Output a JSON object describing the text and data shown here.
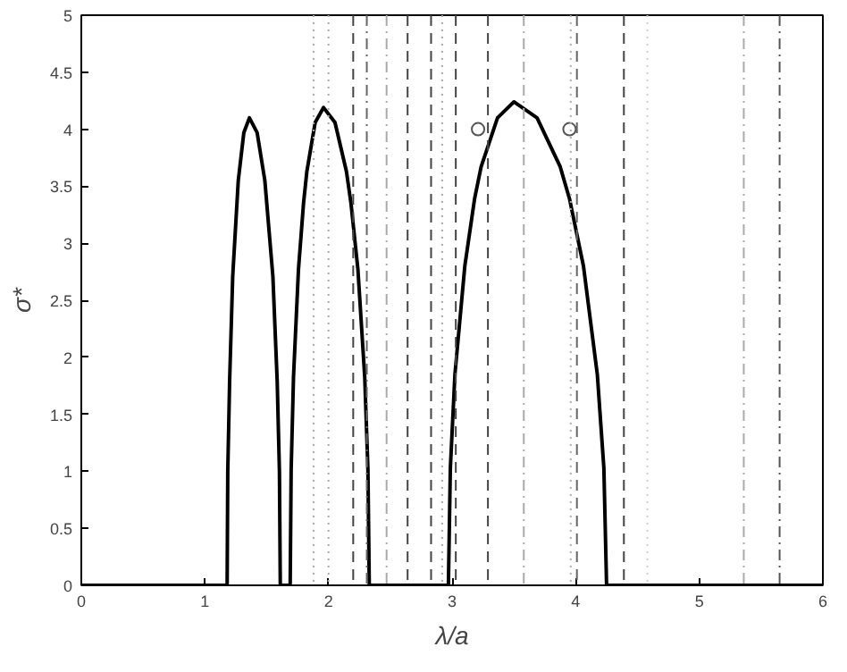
{
  "chart_data": {
    "type": "line",
    "xlabel": "λ/a",
    "ylabel": "σ*",
    "xlim": [
      0,
      6
    ],
    "ylim": [
      0,
      5
    ],
    "xticks": [
      0,
      1,
      2,
      3,
      4,
      5,
      6
    ],
    "yticks": [
      0,
      0.5,
      1,
      1.5,
      2,
      2.5,
      3,
      3.5,
      4,
      4.5,
      5
    ],
    "grid": false,
    "series": [
      {
        "color": "#000000",
        "x": [
          0,
          1.18,
          1.185,
          1.2,
          1.225,
          1.27,
          1.315,
          1.36,
          1.4225,
          1.485,
          1.55,
          1.585,
          1.603,
          1.61,
          1.69,
          1.698,
          1.717,
          1.757,
          1.798,
          1.825,
          1.8925,
          1.96,
          2.0525,
          2.145,
          2.182,
          2.238,
          2.293,
          2.319,
          2.33,
          2.97,
          2.986,
          3.023,
          3.103,
          3.182,
          3.235,
          3.3675,
          3.5,
          3.6875,
          3.875,
          3.95,
          4.063,
          4.175,
          4.228,
          4.25,
          6
        ],
        "values": [
          0,
          0,
          1.0,
          1.79,
          2.71,
          3.55,
          3.97,
          4.1,
          3.97,
          3.55,
          2.71,
          1.79,
          1.0,
          0,
          0,
          1.02,
          1.83,
          2.77,
          3.35,
          3.63,
          4.06,
          4.19,
          4.06,
          3.63,
          3.35,
          2.77,
          1.83,
          1.02,
          0,
          0,
          1.03,
          1.85,
          2.8,
          3.39,
          3.67,
          4.1,
          4.24,
          4.1,
          3.67,
          3.39,
          2.8,
          1.85,
          1.03,
          0,
          0
        ]
      },
      {
        "type": "scatter",
        "marker": "circle",
        "color": "#555555",
        "x": [
          3.21,
          3.95
        ],
        "values": [
          4.0,
          4.0
        ]
      }
    ],
    "ref_lines": [
      {
        "axis": "x",
        "value": 1.88,
        "color": "#aaaaaa",
        "line_style": "dotted"
      },
      {
        "axis": "x",
        "value": 2.0,
        "color": "#aaaaaa",
        "line_style": "dotted"
      },
      {
        "axis": "x",
        "value": 2.2,
        "color": "#444444",
        "line_style": "dashed"
      },
      {
        "axis": "x",
        "value": 2.31,
        "color": "#666666",
        "line_style": "dashdot"
      },
      {
        "axis": "x",
        "value": 2.47,
        "color": "#aaaaaa",
        "line_style": "dashdot"
      },
      {
        "axis": "x",
        "value": 2.64,
        "color": "#444444",
        "line_style": "dashed"
      },
      {
        "axis": "x",
        "value": 2.83,
        "color": "#444444",
        "line_style": "dashed"
      },
      {
        "axis": "x",
        "value": 2.92,
        "color": "#aaaaaa",
        "line_style": "dotted"
      },
      {
        "axis": "x",
        "value": 3.03,
        "color": "#444444",
        "line_style": "dashed"
      },
      {
        "axis": "x",
        "value": 3.29,
        "color": "#444444",
        "line_style": "dashed"
      },
      {
        "axis": "x",
        "value": 3.58,
        "color": "#aaaaaa",
        "line_style": "dashdot"
      },
      {
        "axis": "x",
        "value": 3.96,
        "color": "#aaaaaa",
        "line_style": "dotted"
      },
      {
        "axis": "x",
        "value": 4.01,
        "color": "#666666",
        "line_style": "dashed"
      },
      {
        "axis": "x",
        "value": 4.39,
        "color": "#444444",
        "line_style": "dashed"
      },
      {
        "axis": "x",
        "value": 4.58,
        "color": "#cccccc",
        "line_style": "dotted"
      },
      {
        "axis": "x",
        "value": 5.36,
        "color": "#aaaaaa",
        "line_style": "dashdot"
      },
      {
        "axis": "x",
        "value": 5.65,
        "color": "#555555",
        "line_style": "dashdot"
      }
    ]
  }
}
